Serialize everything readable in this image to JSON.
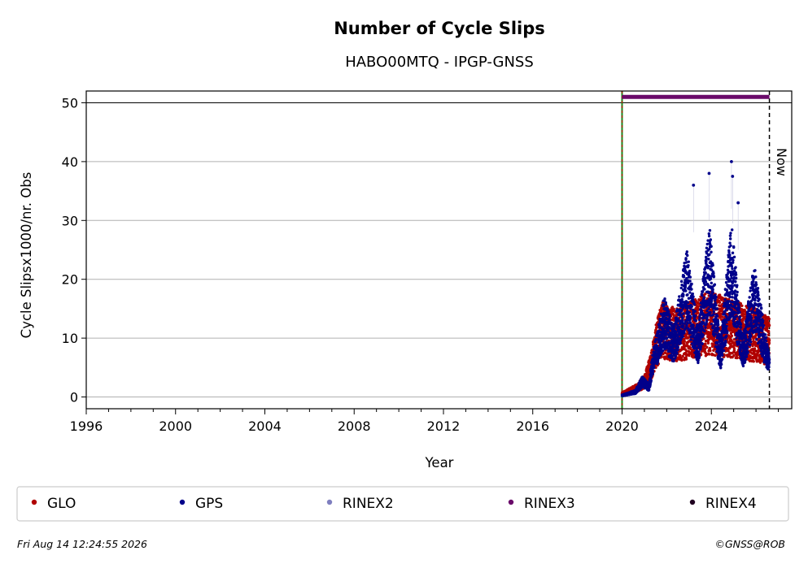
{
  "chart_data": {
    "type": "scatter",
    "title": "Number of Cycle Slips",
    "subtitle": "HABO00MTQ - IPGP-GNSS",
    "xlabel": "Year",
    "ylabel": "Cycle Slipsx1000/nr. Obs",
    "xlim": [
      1996,
      2027.6
    ],
    "ylim": [
      -2,
      52
    ],
    "x_ticks": [
      "1996",
      "2000",
      "2004",
      "2008",
      "2012",
      "2016",
      "2020",
      "2024"
    ],
    "y_ticks": [
      "0",
      "10",
      "20",
      "30",
      "40",
      "50"
    ],
    "grid": "horizontal",
    "vertical_markers": [
      {
        "x": 2020.0,
        "style": "green-red-dashed"
      },
      {
        "x": 2026.6,
        "label": "Now",
        "style": "black-dashed"
      }
    ],
    "rinex3_bar": {
      "start": 2020.0,
      "end": 2026.6,
      "y": 51
    },
    "series": [
      {
        "name": "GLO",
        "color": "#b00000",
        "profile": [
          [
            2020.0,
            0.5
          ],
          [
            2020.7,
            1.5
          ],
          [
            2021.0,
            2.5
          ],
          [
            2021.3,
            5
          ],
          [
            2021.5,
            8
          ],
          [
            2021.8,
            11
          ],
          [
            2022.5,
            10
          ],
          [
            2023.0,
            11
          ],
          [
            2024.0,
            12
          ],
          [
            2025.0,
            11
          ],
          [
            2026.0,
            10
          ],
          [
            2026.6,
            9
          ]
        ]
      },
      {
        "name": "GPS",
        "color": "#00008b",
        "profile": [
          [
            2020.0,
            0.3
          ],
          [
            2020.6,
            1
          ],
          [
            2020.9,
            3
          ],
          [
            2021.2,
            2
          ],
          [
            2021.4,
            7
          ],
          [
            2021.9,
            15
          ],
          [
            2022.3,
            10
          ],
          [
            2022.9,
            22
          ],
          [
            2023.4,
            10
          ],
          [
            2023.9,
            26
          ],
          [
            2024.4,
            8
          ],
          [
            2024.9,
            26
          ],
          [
            2025.4,
            8
          ],
          [
            2025.9,
            20
          ],
          [
            2026.6,
            6
          ]
        ],
        "peaks": [
          [
            2023.2,
            36
          ],
          [
            2023.9,
            38
          ],
          [
            2024.9,
            40
          ],
          [
            2024.95,
            37.5
          ],
          [
            2025.2,
            33
          ]
        ]
      },
      {
        "name": "RINEX2",
        "color": "#7f7fbf"
      },
      {
        "name": "RINEX3",
        "color": "#6a0a6a"
      },
      {
        "name": "RINEX4",
        "color": "#200020"
      }
    ]
  },
  "legend": [
    {
      "name": "GLO",
      "color": "#b00000"
    },
    {
      "name": "GPS",
      "color": "#00008b"
    },
    {
      "name": "RINEX2",
      "color": "#7f7fbf"
    },
    {
      "name": "RINEX3",
      "color": "#6a0a6a"
    },
    {
      "name": "RINEX4",
      "color": "#200020"
    }
  ],
  "footer": {
    "timestamp": "Fri Aug 14 12:24:55 2026",
    "copyright": "©GNSS@ROB"
  }
}
